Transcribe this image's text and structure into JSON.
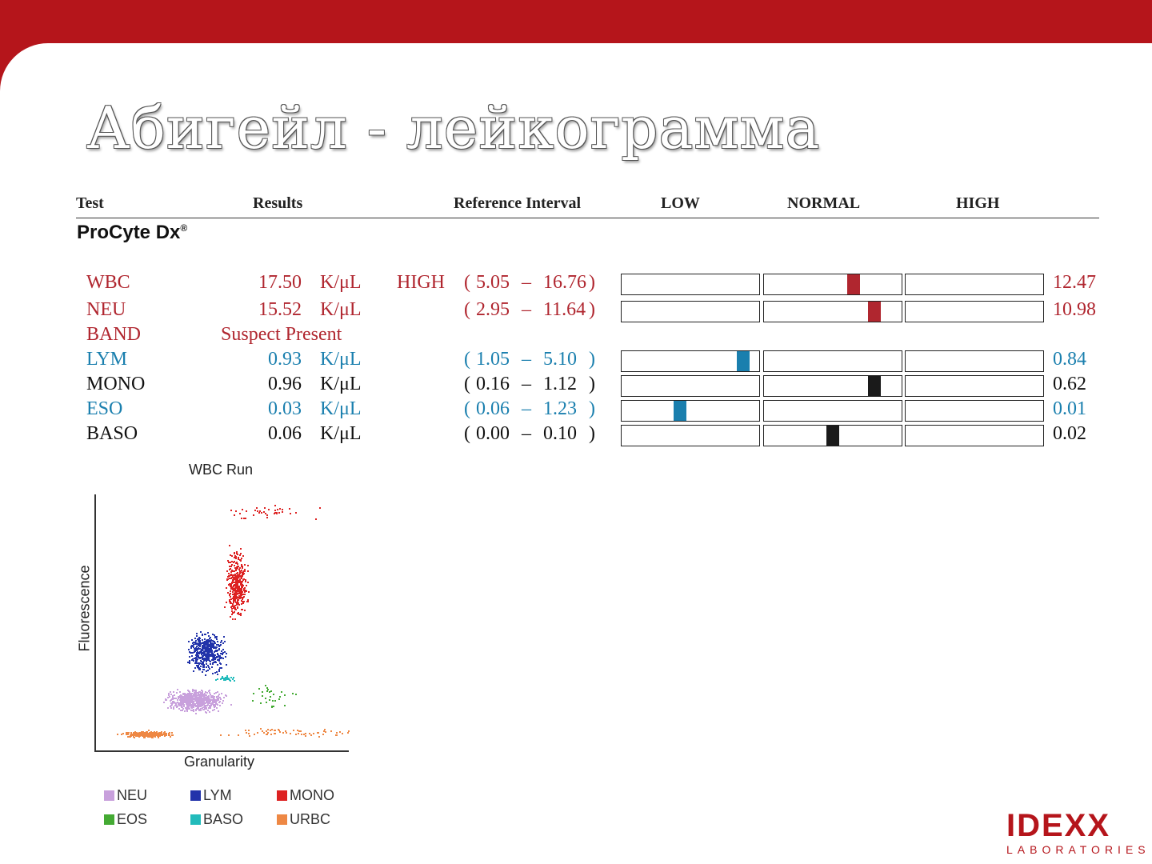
{
  "title": "Абигейл - лейкограмма",
  "headers": {
    "test": "Test",
    "results": "Results",
    "reference": "Reference Interval",
    "low": "LOW",
    "normal": "NORMAL",
    "high": "HIGH"
  },
  "instrument": "ProCyte Dx",
  "instrument_mark": "®",
  "rows": [
    {
      "test": "WBC",
      "value": "17.50",
      "unit": "K/μL",
      "flag": "HIGH",
      "ref_open": "(",
      "ref_low": "5.05",
      "dash": "–",
      "ref_high": "16.76",
      "ref_close": ")",
      "extra": "12.47",
      "color": "red",
      "marker_level": 0.55,
      "marker_color": "#b0262f"
    },
    {
      "test": "NEU",
      "value": "15.52",
      "unit": "K/μL",
      "flag": "",
      "ref_open": "(",
      "ref_low": "2.95",
      "dash": "–",
      "ref_high": "11.64",
      "ref_close": ")",
      "extra": "10.98",
      "color": "red",
      "marker_level": 0.6,
      "marker_color": "#b0262f"
    },
    {
      "test": "BAND",
      "value": "Suspect Present",
      "unit": "",
      "flag": "",
      "ref_open": "",
      "ref_low": "",
      "dash": "",
      "ref_high": "",
      "ref_close": "",
      "extra": "",
      "color": "red",
      "marker_level": null,
      "marker_color": ""
    },
    {
      "test": "LYM",
      "value": "0.93",
      "unit": "K/μL",
      "flag": "",
      "ref_open": "(",
      "ref_low": "1.05",
      "dash": "–",
      "ref_high": "5.10",
      "ref_close": ")",
      "extra": "0.84",
      "color": "blue",
      "marker_level": 0.29,
      "marker_color": "#1a7fae"
    },
    {
      "test": "MONO",
      "value": "0.96",
      "unit": "K/μL",
      "flag": "",
      "ref_open": "(",
      "ref_low": "0.16",
      "dash": "–",
      "ref_high": "1.12",
      "ref_close": ")",
      "extra": "0.62",
      "color": "black",
      "marker_level": 0.6,
      "marker_color": "#1a1a1a"
    },
    {
      "test": "ESO",
      "value": "0.03",
      "unit": "K/μL",
      "flag": "",
      "ref_open": "(",
      "ref_low": "0.06",
      "dash": "–",
      "ref_high": "1.23",
      "ref_close": ")",
      "extra": "0.01",
      "color": "blue",
      "marker_level": 0.14,
      "marker_color": "#1a7fae"
    },
    {
      "test": "BASO",
      "value": "0.06",
      "unit": "K/μL",
      "flag": "",
      "ref_open": "(",
      "ref_low": "0.00",
      "dash": "–",
      "ref_high": "0.10",
      "ref_close": ")",
      "extra": "0.02",
      "color": "black",
      "marker_level": 0.5,
      "marker_color": "#1a1a1a"
    }
  ],
  "plot": {
    "title": "WBC Run",
    "xlabel": "Granularity",
    "ylabel": "Fluorescence",
    "legend": [
      {
        "label": "NEU",
        "color": "#c8a0dc"
      },
      {
        "label": "LYM",
        "color": "#2233aa"
      },
      {
        "label": "MONO",
        "color": "#dd2222"
      },
      {
        "label": "EOS",
        "color": "#44aa33"
      },
      {
        "label": "BASO",
        "color": "#22bbbb"
      },
      {
        "label": "URBC",
        "color": "#ee8844"
      }
    ]
  },
  "logo": {
    "top": "IDEXX",
    "bottom": "LABORATORIES"
  }
}
